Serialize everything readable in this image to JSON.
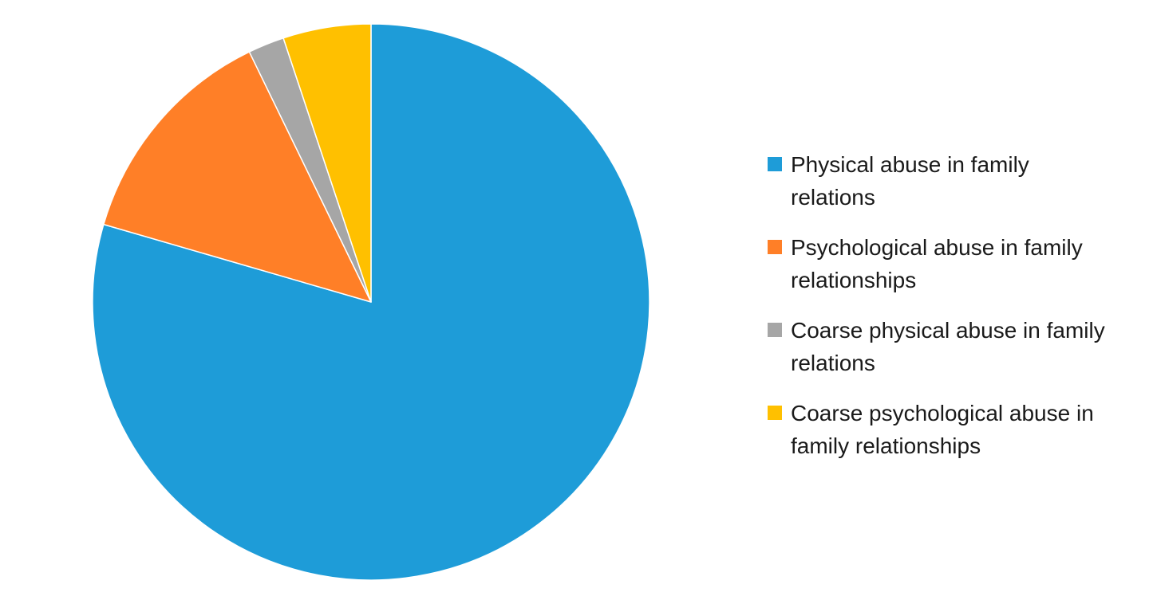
{
  "chart_data": {
    "type": "pie",
    "title": "",
    "legend_position": "right",
    "start_angle_deg": 0,
    "direction": "clockwise",
    "slices": [
      {
        "label": "Physical abuse in family relations",
        "value": 79.5,
        "color": "#1E9CD8"
      },
      {
        "label": "Psychological abuse in family relationships",
        "value": 13.3,
        "color": "#FF7F27"
      },
      {
        "label": "Coarse physical abuse in family relations",
        "value": 2.1,
        "color": "#A6A6A6"
      },
      {
        "label": "Coarse psychological abuse in family relationships",
        "value": 5.1,
        "color": "#FFC000"
      }
    ]
  },
  "legend": {
    "items": [
      {
        "line1": "Physical abuse in family",
        "line2": "relations"
      },
      {
        "line1": "Psychological abuse in family",
        "line2": "relationships"
      },
      {
        "line1": "Coarse physical abuse in family",
        "line2": "relations"
      },
      {
        "line1": "Coarse psychological abuse in",
        "line2": "family relationships"
      }
    ]
  }
}
